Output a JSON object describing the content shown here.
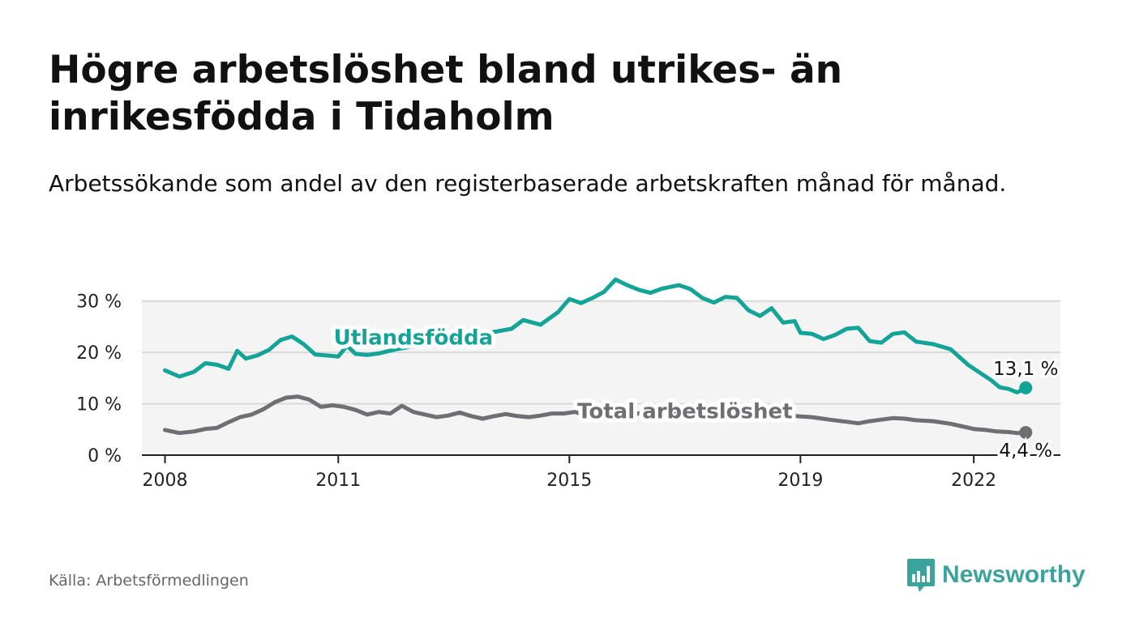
{
  "title": "Högre arbetslöshet bland utrikes- än inrikesfödda i Tidaholm",
  "subtitle": "Arbetssökande som andel av den registerbaserade arbetskraften månad för månad.",
  "source": "Källa: Arbetsförmedlingen",
  "brand": "Newsworthy",
  "colors": {
    "foreign": "#14a497",
    "total": "#6e6e73",
    "band": "#f4f4f4",
    "grid": "#d9d9d9",
    "brand": "#3aa39b"
  },
  "chart_data": {
    "type": "line",
    "x_range": [
      2007.6,
      2023.5
    ],
    "ylim": [
      0,
      35
    ],
    "y_ticks": [
      0,
      10,
      20,
      30
    ],
    "y_tick_labels": [
      "0 %",
      "10 %",
      "20 %",
      "30 %"
    ],
    "x_ticks": [
      2008,
      2011,
      2015,
      2019,
      2022
    ],
    "x_tick_labels": [
      "2008",
      "2011",
      "2015",
      "2019",
      "2022"
    ],
    "series": [
      {
        "name": "Utlandsfödda",
        "end_label": "13,1 %",
        "points": [
          [
            2008.0,
            16.5
          ],
          [
            2008.25,
            15.3
          ],
          [
            2008.5,
            16.2
          ],
          [
            2008.7,
            17.9
          ],
          [
            2008.9,
            17.6
          ],
          [
            2009.1,
            16.8
          ],
          [
            2009.25,
            20.3
          ],
          [
            2009.4,
            18.8
          ],
          [
            2009.6,
            19.4
          ],
          [
            2009.8,
            20.5
          ],
          [
            2010.0,
            22.4
          ],
          [
            2010.2,
            23.1
          ],
          [
            2010.4,
            21.6
          ],
          [
            2010.6,
            19.6
          ],
          [
            2010.8,
            19.4
          ],
          [
            2011.0,
            19.2
          ],
          [
            2011.15,
            21.3
          ],
          [
            2011.3,
            19.7
          ],
          [
            2011.5,
            19.5
          ],
          [
            2011.7,
            19.8
          ],
          [
            2012.0,
            20.6
          ],
          [
            2012.5,
            21.6
          ],
          [
            2013.0,
            22.5
          ],
          [
            2013.5,
            23.6
          ],
          [
            2014.0,
            24.6
          ],
          [
            2014.2,
            26.3
          ],
          [
            2014.5,
            25.4
          ],
          [
            2014.8,
            27.8
          ],
          [
            2015.0,
            30.4
          ],
          [
            2015.2,
            29.6
          ],
          [
            2015.4,
            30.6
          ],
          [
            2015.6,
            31.8
          ],
          [
            2015.8,
            34.2
          ],
          [
            2016.0,
            33.1
          ],
          [
            2016.2,
            32.2
          ],
          [
            2016.4,
            31.6
          ],
          [
            2016.6,
            32.4
          ],
          [
            2016.9,
            33.1
          ],
          [
            2017.1,
            32.3
          ],
          [
            2017.3,
            30.6
          ],
          [
            2017.5,
            29.7
          ],
          [
            2017.7,
            30.8
          ],
          [
            2017.9,
            30.6
          ],
          [
            2018.1,
            28.2
          ],
          [
            2018.3,
            27.1
          ],
          [
            2018.5,
            28.6
          ],
          [
            2018.7,
            25.8
          ],
          [
            2018.9,
            26.1
          ],
          [
            2019.0,
            23.8
          ],
          [
            2019.2,
            23.6
          ],
          [
            2019.4,
            22.6
          ],
          [
            2019.6,
            23.4
          ],
          [
            2019.8,
            24.6
          ],
          [
            2020.0,
            24.8
          ],
          [
            2020.2,
            22.2
          ],
          [
            2020.4,
            21.9
          ],
          [
            2020.6,
            23.6
          ],
          [
            2020.8,
            23.9
          ],
          [
            2021.0,
            22.1
          ],
          [
            2021.3,
            21.6
          ],
          [
            2021.6,
            20.6
          ],
          [
            2021.9,
            17.6
          ],
          [
            2022.1,
            16.1
          ],
          [
            2022.3,
            14.6
          ],
          [
            2022.45,
            13.2
          ],
          [
            2022.6,
            12.9
          ],
          [
            2022.75,
            12.2
          ],
          [
            2022.9,
            13.1
          ]
        ]
      },
      {
        "name": "Total arbetslöshet",
        "end_label": "4,4 %",
        "points": [
          [
            2008.0,
            4.9
          ],
          [
            2008.25,
            4.3
          ],
          [
            2008.5,
            4.6
          ],
          [
            2008.7,
            5.1
          ],
          [
            2008.9,
            5.3
          ],
          [
            2009.1,
            6.4
          ],
          [
            2009.3,
            7.4
          ],
          [
            2009.5,
            7.9
          ],
          [
            2009.7,
            8.9
          ],
          [
            2009.9,
            10.3
          ],
          [
            2010.1,
            11.2
          ],
          [
            2010.3,
            11.4
          ],
          [
            2010.5,
            10.8
          ],
          [
            2010.7,
            9.4
          ],
          [
            2010.9,
            9.7
          ],
          [
            2011.1,
            9.4
          ],
          [
            2011.3,
            8.8
          ],
          [
            2011.5,
            7.9
          ],
          [
            2011.7,
            8.4
          ],
          [
            2011.9,
            8.1
          ],
          [
            2012.1,
            9.6
          ],
          [
            2012.3,
            8.4
          ],
          [
            2012.5,
            7.9
          ],
          [
            2012.7,
            7.4
          ],
          [
            2012.9,
            7.7
          ],
          [
            2013.1,
            8.3
          ],
          [
            2013.3,
            7.6
          ],
          [
            2013.5,
            7.1
          ],
          [
            2013.7,
            7.6
          ],
          [
            2013.9,
            8.0
          ],
          [
            2014.1,
            7.6
          ],
          [
            2014.3,
            7.4
          ],
          [
            2014.5,
            7.7
          ],
          [
            2014.7,
            8.1
          ],
          [
            2014.9,
            8.1
          ],
          [
            2015.1,
            8.4
          ],
          [
            2015.3,
            7.6
          ],
          [
            2015.5,
            7.1
          ],
          [
            2015.7,
            7.6
          ],
          [
            2015.9,
            8.1
          ],
          [
            2016.2,
            8.1
          ],
          [
            2016.5,
            7.9
          ],
          [
            2016.8,
            8.3
          ],
          [
            2017.1,
            8.1
          ],
          [
            2017.4,
            7.9
          ],
          [
            2017.7,
            7.6
          ],
          [
            2018.0,
            7.4
          ],
          [
            2018.3,
            7.1
          ],
          [
            2018.6,
            7.4
          ],
          [
            2018.9,
            7.6
          ],
          [
            2019.2,
            7.4
          ],
          [
            2019.5,
            6.9
          ],
          [
            2019.8,
            6.5
          ],
          [
            2020.0,
            6.2
          ],
          [
            2020.2,
            6.6
          ],
          [
            2020.4,
            6.9
          ],
          [
            2020.6,
            7.2
          ],
          [
            2020.8,
            7.1
          ],
          [
            2021.0,
            6.8
          ],
          [
            2021.3,
            6.6
          ],
          [
            2021.6,
            6.1
          ],
          [
            2021.8,
            5.6
          ],
          [
            2022.0,
            5.1
          ],
          [
            2022.2,
            4.9
          ],
          [
            2022.4,
            4.6
          ],
          [
            2022.6,
            4.5
          ],
          [
            2022.75,
            4.3
          ],
          [
            2022.9,
            4.4
          ]
        ]
      }
    ],
    "annotations": [
      {
        "text": "Utlandsfödda",
        "series": "Utlandsfödda",
        "anchor_x": 2012.3,
        "anchor_y": 21.5
      },
      {
        "text": "Total arbetslöshet",
        "series": "Total arbetslöshet",
        "anchor_x": 2017.0,
        "anchor_y": 7.2
      }
    ]
  }
}
